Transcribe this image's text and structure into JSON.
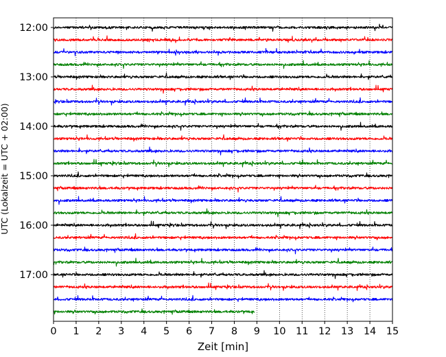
{
  "chart_data": {
    "type": "line",
    "xlabel": "Zeit  [min]",
    "ylabel": "UTC (Lokalzeit = UTC + 02:00)",
    "xlim": [
      0,
      15
    ],
    "x_ticks": [
      0,
      1,
      2,
      3,
      4,
      5,
      6,
      7,
      8,
      9,
      10,
      11,
      12,
      13,
      14,
      15
    ],
    "y_tick_labels": [
      "12:00",
      "13:00",
      "14:00",
      "15:00",
      "16:00",
      "17:00"
    ],
    "grid": "vertical-dotted",
    "trace_colors": [
      "#000000",
      "#ff0000",
      "#0000ff",
      "#008000"
    ],
    "trace_minutes": 15,
    "traces": [
      {
        "start": "12:00",
        "end_min": 15
      },
      {
        "start": "12:15",
        "end_min": 15
      },
      {
        "start": "12:30",
        "end_min": 15
      },
      {
        "start": "12:45",
        "end_min": 15
      },
      {
        "start": "13:00",
        "end_min": 15
      },
      {
        "start": "13:15",
        "end_min": 15
      },
      {
        "start": "13:30",
        "end_min": 15
      },
      {
        "start": "13:45",
        "end_min": 15
      },
      {
        "start": "14:00",
        "end_min": 15
      },
      {
        "start": "14:15",
        "end_min": 15
      },
      {
        "start": "14:30",
        "end_min": 15
      },
      {
        "start": "14:45",
        "end_min": 15
      },
      {
        "start": "15:00",
        "end_min": 15
      },
      {
        "start": "15:15",
        "end_min": 15
      },
      {
        "start": "15:30",
        "end_min": 15
      },
      {
        "start": "15:45",
        "end_min": 15
      },
      {
        "start": "16:00",
        "end_min": 15
      },
      {
        "start": "16:15",
        "end_min": 15
      },
      {
        "start": "16:30",
        "end_min": 15
      },
      {
        "start": "16:45",
        "end_min": 15
      },
      {
        "start": "17:00",
        "end_min": 15
      },
      {
        "start": "17:15",
        "end_min": 15
      },
      {
        "start": "17:30",
        "end_min": 15
      },
      {
        "start": "17:45",
        "end_min": 8.9
      }
    ]
  }
}
